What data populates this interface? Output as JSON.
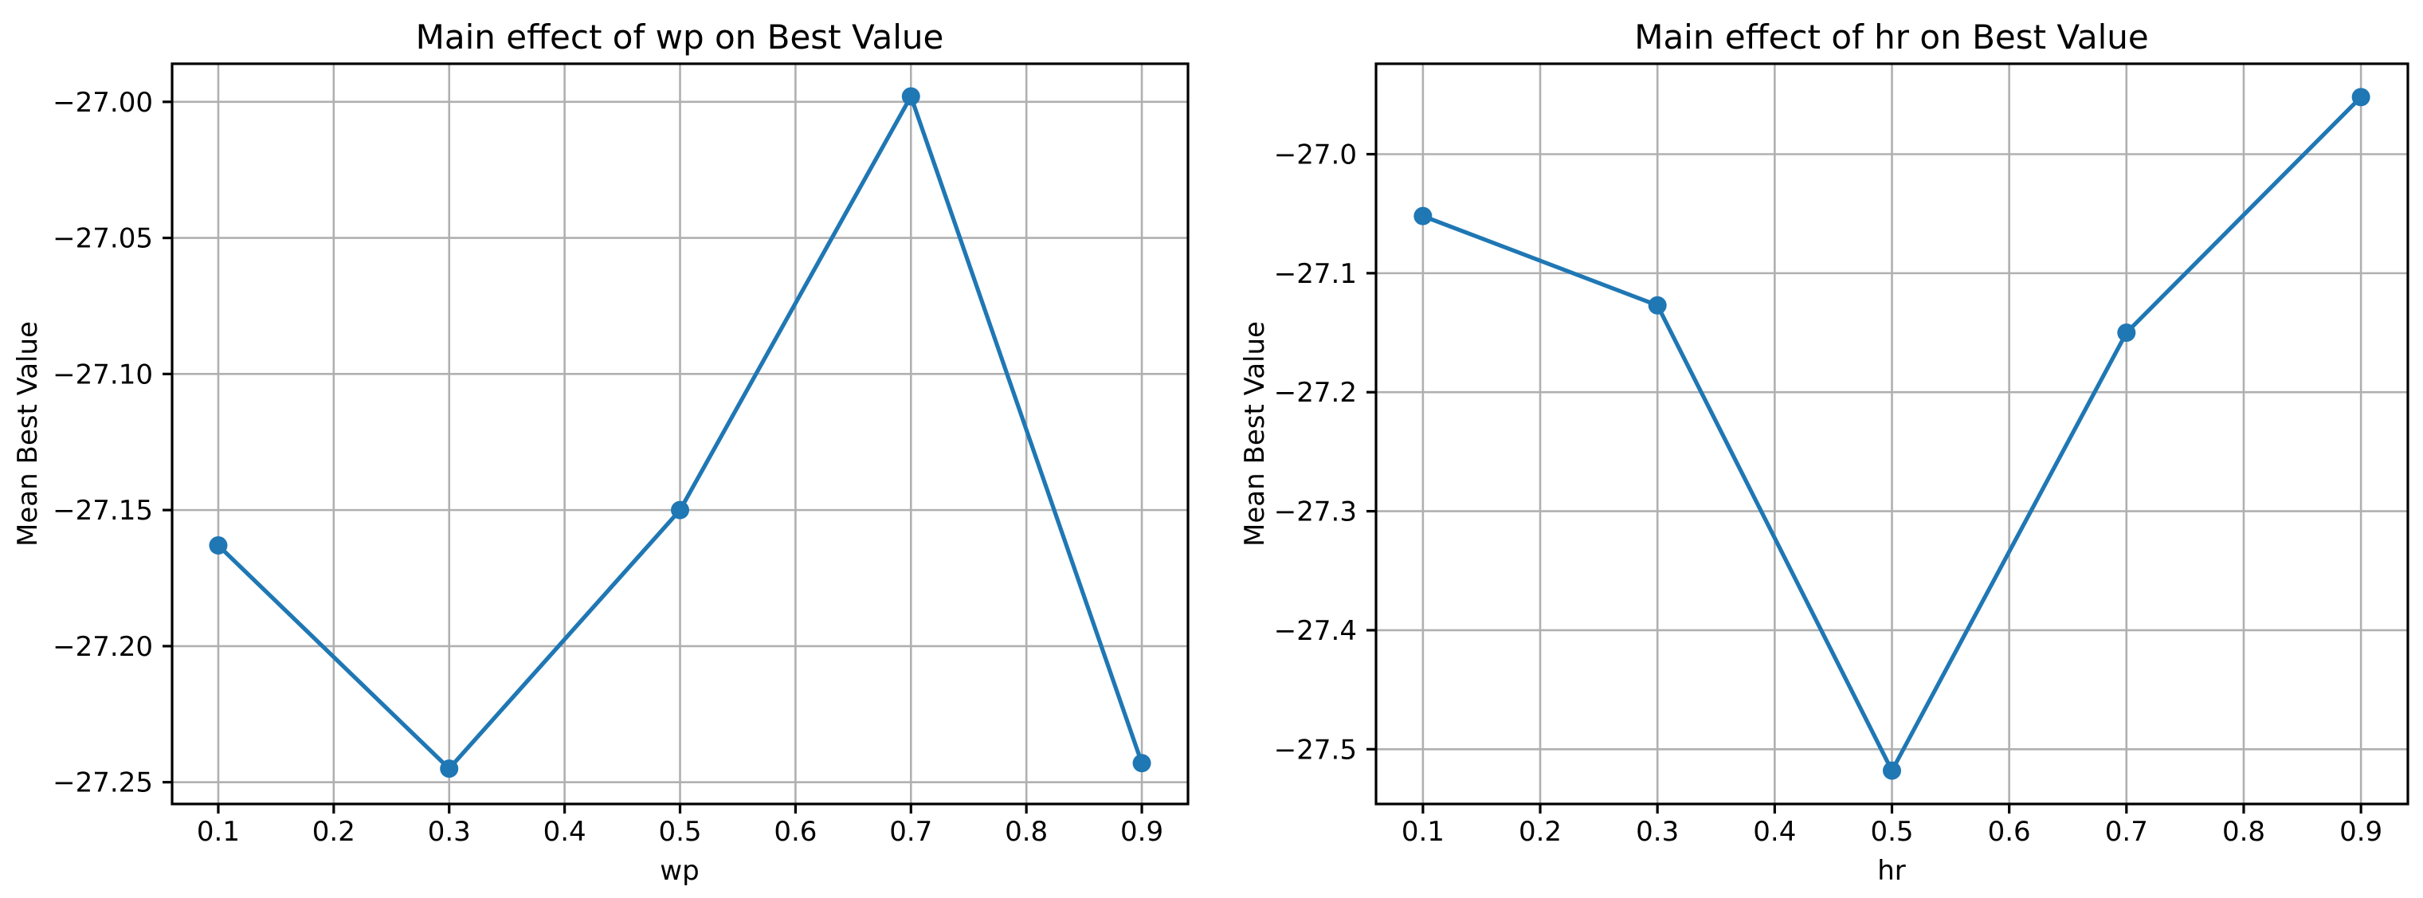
{
  "figure": {
    "background": "#ffffff"
  },
  "style": {
    "line_color": "#1f77b4",
    "marker_color": "#1f77b4",
    "grid_color": "#b0b0b0",
    "spine_color": "#000000",
    "tick_color": "#000000",
    "text_color": "#000000"
  },
  "chart_data": [
    {
      "type": "line",
      "title": "Main effect of wp on Best Value",
      "xlabel": "wp",
      "ylabel": "Mean Best Value",
      "x": [
        0.1,
        0.3,
        0.5,
        0.7,
        0.9
      ],
      "y": [
        -27.163,
        -27.245,
        -27.15,
        -26.998,
        -27.243
      ],
      "xlim": [
        0.06,
        0.94
      ],
      "ylim": [
        -27.258,
        -26.986
      ],
      "grid": true,
      "marker": "o",
      "xticks": {
        "values": [
          0.1,
          0.2,
          0.3,
          0.4,
          0.5,
          0.6,
          0.7,
          0.8,
          0.9
        ],
        "labels": [
          "0.1",
          "0.2",
          "0.3",
          "0.4",
          "0.5",
          "0.6",
          "0.7",
          "0.8",
          "0.9"
        ]
      },
      "yticks": {
        "values": [
          -27.0,
          -27.05,
          -27.1,
          -27.15,
          -27.2,
          -27.25
        ],
        "labels": [
          "−27.00",
          "−27.05",
          "−27.10",
          "−27.15",
          "−27.20",
          "−27.25"
        ]
      }
    },
    {
      "type": "line",
      "title": "Main effect of hr on Best Value",
      "xlabel": "hr",
      "ylabel": "Mean Best Value",
      "x": [
        0.1,
        0.3,
        0.5,
        0.7,
        0.9
      ],
      "y": [
        -27.052,
        -27.127,
        -27.518,
        -27.15,
        -26.952
      ],
      "xlim": [
        0.06,
        0.94
      ],
      "ylim": [
        -27.546,
        -26.924
      ],
      "grid": true,
      "marker": "o",
      "xticks": {
        "values": [
          0.1,
          0.2,
          0.3,
          0.4,
          0.5,
          0.6,
          0.7,
          0.8,
          0.9
        ],
        "labels": [
          "0.1",
          "0.2",
          "0.3",
          "0.4",
          "0.5",
          "0.6",
          "0.7",
          "0.8",
          "0.9"
        ]
      },
      "yticks": {
        "values": [
          -27.0,
          -27.1,
          -27.2,
          -27.3,
          -27.4,
          -27.5
        ],
        "labels": [
          "−27.0",
          "−27.1",
          "−27.2",
          "−27.3",
          "−27.4",
          "−27.5"
        ]
      }
    }
  ]
}
